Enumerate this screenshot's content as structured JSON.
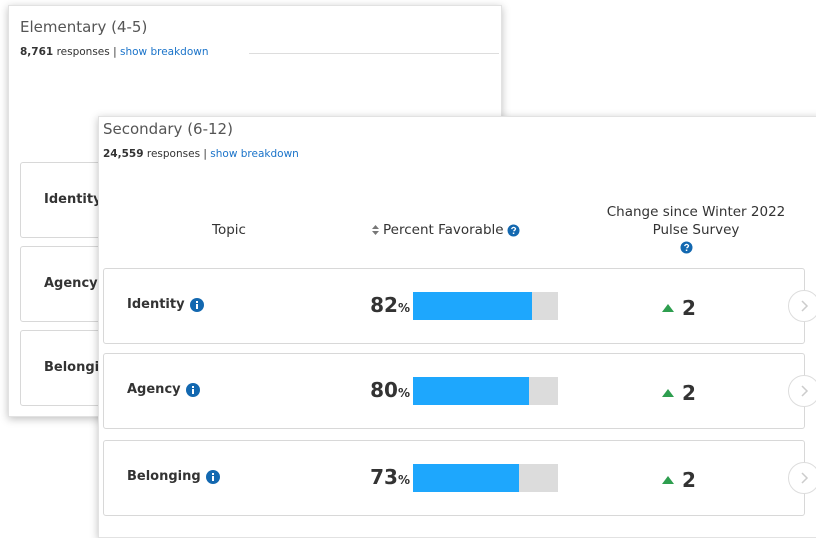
{
  "back_card": {
    "title": "Elementary (4-5)",
    "count": "8,761",
    "count_label": "responses",
    "separator": "|",
    "breakdown_link": "show breakdown",
    "rows": [
      "Identity",
      "Agency",
      "Belonging"
    ]
  },
  "front_card": {
    "title": "Secondary (6-12)",
    "count": "24,559",
    "count_label": "responses",
    "separator": "|",
    "breakdown_link": "show breakdown",
    "columns": {
      "topic": "Topic",
      "percent": "Percent Favorable",
      "change": "Change since Winter 2022 Pulse Survey"
    },
    "rows": [
      {
        "topic": "Identity",
        "percent_favorable": 82,
        "unit": "%",
        "change": 2
      },
      {
        "topic": "Agency",
        "percent_favorable": 80,
        "unit": "%",
        "change": 2
      },
      {
        "topic": "Belonging",
        "percent_favorable": 73,
        "unit": "%",
        "change": 2
      }
    ]
  }
}
